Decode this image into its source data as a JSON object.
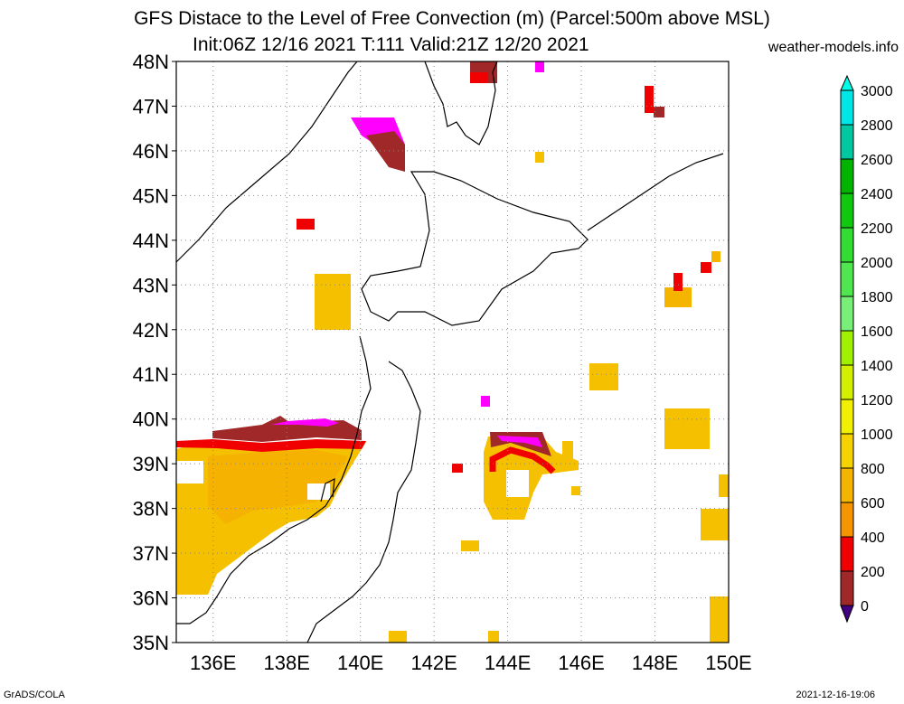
{
  "header": {
    "title_line1": "GFS Distace to the Level of Free Convection (m) (Parcel:500m above MSL)",
    "title_line2": "Init:06Z 12/16 2021 T:111 Valid:21Z 12/20 2021",
    "site": "weather-models.info"
  },
  "footer": {
    "left": "GrADS/COLA",
    "right": "2021-12-16-19:06"
  },
  "map": {
    "lon_range": [
      135,
      150
    ],
    "lat_range": [
      35,
      48
    ],
    "lat_labels": [
      "48N",
      "47N",
      "46N",
      "45N",
      "44N",
      "43N",
      "42N",
      "41N",
      "40N",
      "39N",
      "38N",
      "37N",
      "36N",
      "35N"
    ],
    "lon_labels": [
      "136E",
      "138E",
      "140E",
      "142E",
      "144E",
      "146E",
      "148E",
      "150E"
    ],
    "lon_ticks": [
      136,
      138,
      140,
      142,
      144,
      146,
      148,
      150
    ],
    "lat_ticks": [
      48,
      47,
      46,
      45,
      44,
      43,
      42,
      41,
      40,
      39,
      38,
      37,
      36,
      35
    ],
    "grid": "dotted"
  },
  "colorbar": {
    "levels": [
      "3000",
      "2800",
      "2600",
      "2400",
      "2200",
      "2000",
      "1800",
      "1600",
      "1400",
      "1200",
      "1000",
      "800",
      "600",
      "400",
      "200",
      "0"
    ],
    "colors_top_to_bottom": [
      "#00e5e5",
      "#00c8a0",
      "#00b400",
      "#10c810",
      "#32dc32",
      "#50e650",
      "#78f078",
      "#a0f000",
      "#d2f000",
      "#f0f000",
      "#f5d200",
      "#f5b400",
      "#f59600",
      "#f00000",
      "#a02828",
      "#ff00ff",
      "#400080"
    ],
    "top_cap_color": "#00ffe6",
    "bottom_cap_color": "#400080"
  }
}
